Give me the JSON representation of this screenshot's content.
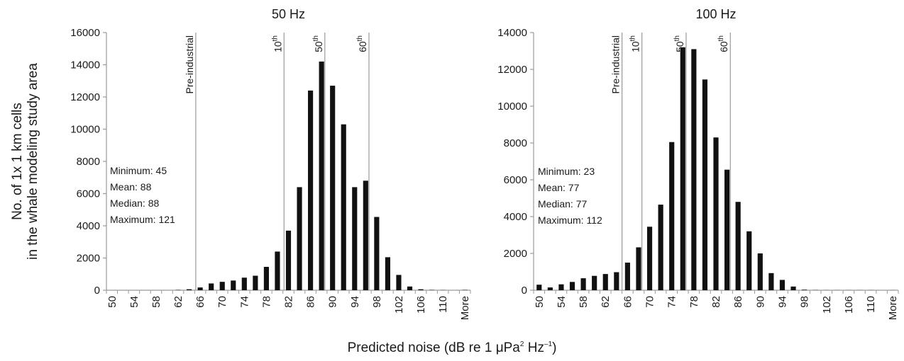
{
  "y_axis_label_line1": "No. of 1x 1 km cells",
  "y_axis_label_line2": "in the whale modeling study area",
  "x_axis_label_prefix": "Predicted noise (dB re 1 μPa",
  "x_axis_label_sup1": "2",
  "x_axis_label_mid": " Hz",
  "x_axis_label_sup2": "–1",
  "x_axis_label_suffix": ")",
  "chart_data": [
    {
      "type": "bar",
      "title": "50 Hz",
      "ylim": [
        0,
        16000
      ],
      "yticks": [
        0,
        2000,
        4000,
        6000,
        8000,
        10000,
        12000,
        14000,
        16000
      ],
      "bins": [
        "50",
        "52",
        "54",
        "56",
        "58",
        "60",
        "62",
        "64",
        "66",
        "68",
        "70",
        "72",
        "74",
        "76",
        "78",
        "80",
        "82",
        "84",
        "86",
        "88",
        "90",
        "92",
        "94",
        "96",
        "98",
        "100",
        "102",
        "104",
        "106",
        "108",
        "110",
        "112",
        "More"
      ],
      "tick_labels": [
        "50",
        "54",
        "58",
        "62",
        "66",
        "70",
        "74",
        "78",
        "82",
        "86",
        "90",
        "94",
        "98",
        "102",
        "106",
        "110",
        "More"
      ],
      "values": [
        0,
        0,
        0,
        0,
        0,
        0,
        20,
        60,
        170,
        420,
        520,
        600,
        780,
        900,
        1450,
        2400,
        3700,
        6400,
        12400,
        14200,
        12700,
        10300,
        6400,
        6800,
        4550,
        2050,
        950,
        230,
        60,
        20,
        10,
        0,
        20
      ],
      "stats": [
        "Minimum: 45",
        "Mean: 88",
        "Median: 88",
        "Maximum: 121"
      ],
      "reference_lines": [
        {
          "label": "Pre-industrial",
          "sup": "",
          "x": 65.2
        },
        {
          "label": "10",
          "sup": "th",
          "x": 81.2
        },
        {
          "label": "50",
          "sup": "th",
          "x": 88.6
        },
        {
          "label": "60",
          "sup": "th",
          "x": 96.6
        }
      ]
    },
    {
      "type": "bar",
      "title": "100 Hz",
      "ylim": [
        0,
        14000
      ],
      "yticks": [
        0,
        2000,
        4000,
        6000,
        8000,
        10000,
        12000,
        14000
      ],
      "bins": [
        "50",
        "52",
        "54",
        "56",
        "58",
        "60",
        "62",
        "64",
        "66",
        "68",
        "70",
        "72",
        "74",
        "76",
        "78",
        "80",
        "82",
        "84",
        "86",
        "88",
        "90",
        "92",
        "94",
        "96",
        "98",
        "100",
        "102",
        "104",
        "106",
        "108",
        "110",
        "112",
        "More"
      ],
      "tick_labels": [
        "50",
        "54",
        "58",
        "62",
        "66",
        "70",
        "74",
        "78",
        "82",
        "86",
        "90",
        "94",
        "98",
        "102",
        "106",
        "110",
        "More"
      ],
      "values": [
        300,
        150,
        320,
        450,
        650,
        780,
        880,
        980,
        1500,
        2330,
        3450,
        4650,
        8050,
        13200,
        13100,
        11450,
        8300,
        6550,
        4800,
        3200,
        2000,
        930,
        560,
        200,
        30,
        10,
        5,
        5,
        5,
        5,
        5,
        0,
        5
      ],
      "stats": [
        "Minimum: 23",
        "Mean: 77",
        "Median: 77",
        "Maximum: 112"
      ],
      "reference_lines": [
        {
          "label": "Pre-industrial",
          "sup": "",
          "x": 65.0
        },
        {
          "label": "10",
          "sup": "th",
          "x": 68.6
        },
        {
          "label": "50",
          "sup": "th",
          "x": 76.6
        },
        {
          "label": "60",
          "sup": "th",
          "x": 84.6
        }
      ]
    }
  ]
}
